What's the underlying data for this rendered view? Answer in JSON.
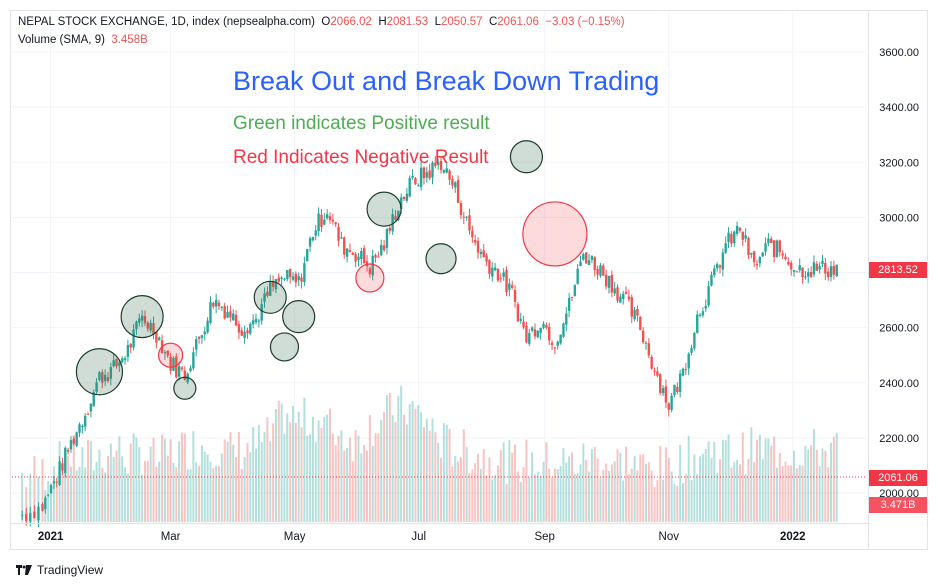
{
  "header": {
    "symbol": "NEPAL STOCK EXCHANGE, 1D, index (nepsealpha.com)",
    "o_label": "O",
    "o": "2066.02",
    "h_label": "H",
    "h": "2081.53",
    "l_label": "L",
    "l": "2050.57",
    "c_label": "C",
    "c": "2061.06",
    "change": "−3.03 (−0.15%)",
    "volume_label": "Volume (SMA, 9)",
    "volume_value": "3.458B"
  },
  "annotations": {
    "title": "Break Out and Break Down Trading",
    "green_note": "Green indicates Positive result",
    "red_note": "Red Indicates Negative Result"
  },
  "price_tags": {
    "last_price": "2813.52",
    "prev_close": "2061.06",
    "volume_last": "3.471B"
  },
  "footer": {
    "brand": "TradingView"
  },
  "colors": {
    "up": "#26a69a",
    "down": "#ef5350",
    "annotation_blue": "#2962ff",
    "annotation_green": "#4caf50",
    "annotation_red": "#f23645"
  },
  "chart_data": {
    "type": "candlestick",
    "title": "Break Out and Break Down Trading",
    "interval": "1D",
    "y_ticks": [
      "3600.00",
      "3400.00",
      "3200.00",
      "3000.00",
      "2800.00",
      "2600.00",
      "2400.00",
      "2200.00",
      "2000.00"
    ],
    "ylim": [
      1900,
      3700
    ],
    "x_ticks": [
      "2021",
      "Mar",
      "May",
      "Jul",
      "Sep",
      "Nov",
      "2022"
    ],
    "grid": true,
    "series": [
      {
        "name": "Close",
        "x": [
          "2020-12-18",
          "2020-12-28",
          "2021-01-04",
          "2021-01-11",
          "2021-01-18",
          "2021-01-25",
          "2021-02-01",
          "2021-02-08",
          "2021-02-15",
          "2021-02-22",
          "2021-03-01",
          "2021-03-08",
          "2021-03-15",
          "2021-03-22",
          "2021-03-29",
          "2021-04-05",
          "2021-04-12",
          "2021-04-19",
          "2021-04-26",
          "2021-05-03",
          "2021-05-10",
          "2021-05-17",
          "2021-05-24",
          "2021-05-31",
          "2021-06-07",
          "2021-06-14",
          "2021-06-21",
          "2021-06-28",
          "2021-07-05",
          "2021-07-12",
          "2021-07-19",
          "2021-07-26",
          "2021-08-02",
          "2021-08-09",
          "2021-08-16",
          "2021-08-23",
          "2021-08-30",
          "2021-09-06",
          "2021-09-13",
          "2021-09-20",
          "2021-09-27",
          "2021-10-04",
          "2021-10-11",
          "2021-10-18",
          "2021-10-25",
          "2021-11-01",
          "2021-11-08",
          "2021-11-15",
          "2021-11-22",
          "2021-11-29",
          "2021-12-06",
          "2021-12-13",
          "2021-12-20",
          "2021-12-27",
          "2022-01-03",
          "2022-01-10",
          "2022-01-17",
          "2022-01-24"
        ],
        "values": [
          1920,
          1950,
          2060,
          2180,
          2290,
          2420,
          2450,
          2520,
          2640,
          2580,
          2470,
          2430,
          2560,
          2700,
          2660,
          2600,
          2630,
          2740,
          2780,
          2760,
          2950,
          3030,
          2900,
          2870,
          2820,
          2900,
          3050,
          3130,
          3160,
          3200,
          3100,
          2950,
          2850,
          2800,
          2720,
          2560,
          2630,
          2550,
          2680,
          2870,
          2820,
          2760,
          2690,
          2600,
          2450,
          2320,
          2440,
          2640,
          2760,
          2900,
          2960,
          2820,
          2900,
          2870,
          2813.52,
          2813.52,
          2813.52,
          2813.52
        ]
      },
      {
        "name": "Volume (SMA, 9)",
        "values_billion_approx": [
          2.8,
          2.9,
          3.1,
          3.3,
          3.2,
          3.3,
          3.5,
          3.3,
          3.4,
          3.2,
          3.4,
          3.5,
          3.6,
          3.6,
          3.4,
          3.5,
          3.6,
          3.8,
          4.4,
          4.2,
          4.3,
          4.1,
          3.9,
          3.7,
          4.1,
          4.3,
          4.6,
          4.5,
          4.2,
          3.7,
          3.5,
          3.4,
          3.3,
          3.3,
          3.1,
          3.2,
          3.1,
          3.2,
          3.1,
          3.2,
          3.3,
          3.1,
          3.2,
          3.0,
          3.0,
          3.0,
          3.2,
          3.3,
          3.5,
          3.4,
          3.4,
          3.5,
          3.47,
          3.47,
          3.471,
          3.471,
          3.471,
          3.471
        ]
      }
    ],
    "markers": [
      {
        "date": "2021-01-25",
        "price": 2440,
        "result": "positive"
      },
      {
        "date": "2021-02-15",
        "price": 2640,
        "result": "positive"
      },
      {
        "date": "2021-03-01",
        "price": 2500,
        "result": "negative"
      },
      {
        "date": "2021-03-08",
        "price": 2380,
        "result": "positive"
      },
      {
        "date": "2021-04-19",
        "price": 2710,
        "result": "positive"
      },
      {
        "date": "2021-04-26",
        "price": 2530,
        "result": "positive"
      },
      {
        "date": "2021-05-03",
        "price": 2640,
        "result": "positive"
      },
      {
        "date": "2021-06-07",
        "price": 2780,
        "result": "negative"
      },
      {
        "date": "2021-06-14",
        "price": 3030,
        "result": "positive"
      },
      {
        "date": "2021-07-12",
        "price": 2850,
        "result": "positive"
      },
      {
        "date": "2021-08-23",
        "price": 3220,
        "result": "positive"
      },
      {
        "date": "2021-09-06",
        "price": 2940,
        "result": "negative"
      }
    ]
  }
}
